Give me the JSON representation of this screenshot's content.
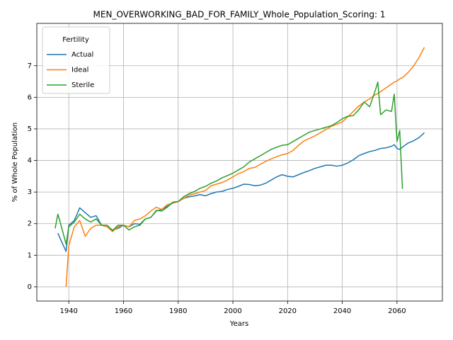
{
  "chart_data": {
    "type": "line",
    "title": "MEN_OVERWORKING_BAD_FOR_FAMILY_Whole_Population_Scoring: 1",
    "x_label": "Years",
    "y_label": "% of Whole Population",
    "legend_title": "Fertility",
    "legend_position": "upper left",
    "grid": true,
    "xlim": [
      1928.3,
      2076.6
    ],
    "ylim": [
      -0.45,
      8.34
    ],
    "xticks": [
      1940,
      1960,
      1980,
      2000,
      2020,
      2040,
      2060
    ],
    "yticks": [
      0,
      1,
      2,
      3,
      4,
      5,
      6,
      7
    ],
    "x": [
      1935,
      1936,
      1937,
      1939,
      1940,
      1942,
      1944,
      1946,
      1948,
      1950,
      1952,
      1954,
      1956,
      1958,
      1960,
      1962,
      1964,
      1966,
      1968,
      1970,
      1972,
      1974,
      1976,
      1978,
      1980,
      1982,
      1984,
      1986,
      1988,
      1990,
      1992,
      1994,
      1996,
      1998,
      2000,
      2002,
      2004,
      2006,
      2008,
      2010,
      2012,
      2014,
      2016,
      2018,
      2020,
      2022,
      2024,
      2026,
      2028,
      2030,
      2032,
      2034,
      2036,
      2038,
      2040,
      2042,
      2044,
      2046,
      2048,
      2050,
      2052,
      2053,
      2054,
      2056,
      2058,
      2059,
      2060,
      2061,
      2062,
      2064,
      2066,
      2068,
      2070
    ],
    "series": [
      {
        "name": "Actual",
        "color": "#1f77b4",
        "values": [
          null,
          1.7,
          1.5,
          1.12,
          1.95,
          2.1,
          2.5,
          2.35,
          2.2,
          2.25,
          1.95,
          1.9,
          1.8,
          1.85,
          1.95,
          1.9,
          2.0,
          1.98,
          2.15,
          2.2,
          2.4,
          2.45,
          2.55,
          2.65,
          2.7,
          2.8,
          2.85,
          2.88,
          2.92,
          2.88,
          2.95,
          3.0,
          3.02,
          3.08,
          3.12,
          3.18,
          3.25,
          3.24,
          3.2,
          3.22,
          3.28,
          3.38,
          3.48,
          3.55,
          3.5,
          3.48,
          3.55,
          3.62,
          3.68,
          3.75,
          3.8,
          3.85,
          3.85,
          3.82,
          3.85,
          3.92,
          4.02,
          4.15,
          4.22,
          4.28,
          4.32,
          4.35,
          4.38,
          4.4,
          4.45,
          4.5,
          4.38,
          4.35,
          4.42,
          4.55,
          4.62,
          4.72,
          4.88
        ]
      },
      {
        "name": "Ideal",
        "color": "#ff7f0e",
        "values": [
          null,
          null,
          null,
          0,
          1.3,
          1.9,
          2.1,
          1.6,
          1.85,
          1.95,
          1.95,
          1.9,
          1.75,
          1.9,
          1.95,
          1.9,
          2.1,
          2.15,
          2.25,
          2.4,
          2.52,
          2.45,
          2.6,
          2.65,
          2.7,
          2.8,
          2.9,
          2.95,
          3.0,
          3.05,
          3.2,
          3.25,
          3.3,
          3.38,
          3.48,
          3.58,
          3.65,
          3.75,
          3.78,
          3.88,
          3.97,
          4.05,
          4.12,
          4.18,
          4.22,
          4.32,
          4.48,
          4.62,
          4.7,
          4.78,
          4.88,
          4.98,
          5.08,
          5.15,
          5.22,
          5.38,
          5.55,
          5.72,
          5.85,
          5.95,
          6.08,
          6.12,
          6.18,
          6.3,
          6.42,
          6.48,
          6.52,
          6.58,
          6.62,
          6.78,
          6.98,
          7.25,
          7.58
        ]
      },
      {
        "name": "Sterile",
        "color": "#2ca02c",
        "values": [
          1.85,
          2.3,
          2.0,
          1.35,
          1.9,
          2.05,
          2.3,
          2.15,
          2.05,
          2.15,
          1.95,
          1.95,
          1.78,
          1.95,
          1.95,
          1.8,
          1.9,
          1.95,
          2.15,
          2.2,
          2.42,
          2.4,
          2.52,
          2.68,
          2.7,
          2.85,
          2.95,
          3.02,
          3.12,
          3.18,
          3.28,
          3.35,
          3.45,
          3.52,
          3.6,
          3.7,
          3.8,
          3.95,
          4.05,
          4.15,
          4.25,
          4.35,
          4.42,
          4.48,
          4.5,
          4.6,
          4.7,
          4.8,
          4.9,
          4.95,
          5.0,
          5.05,
          5.1,
          5.2,
          5.32,
          5.4,
          5.42,
          5.6,
          5.85,
          5.7,
          6.2,
          6.48,
          5.45,
          5.6,
          5.55,
          6.1,
          4.6,
          4.95,
          3.1,
          null,
          null,
          null,
          null
        ]
      }
    ]
  }
}
